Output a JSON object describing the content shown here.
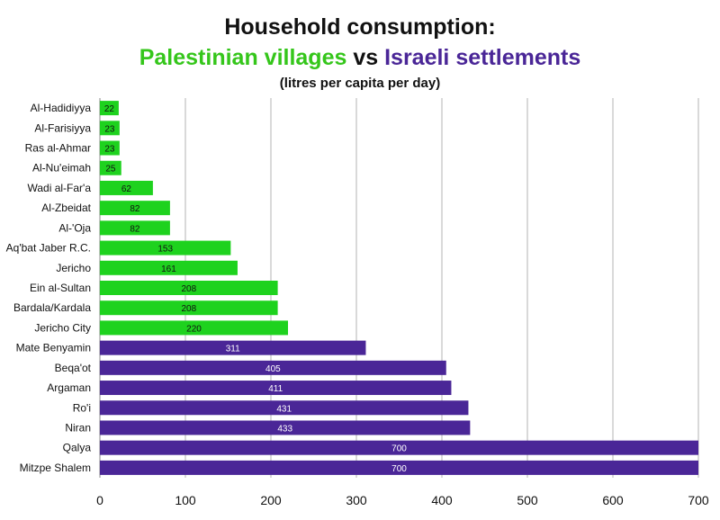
{
  "title": {
    "line1": "Household consumption:",
    "palestinian": "Palestinian villages",
    "vs": " vs ",
    "israeli": "Israeli settlements",
    "subtitle": "(litres per capita per day)"
  },
  "colors": {
    "palestinian": "#1ed21e",
    "israeli": "#4a2697",
    "palestinian_title": "#35c61b",
    "grid": "#b3b3b3"
  },
  "chart_data": {
    "type": "bar",
    "orientation": "horizontal",
    "categories": [
      "Al-Hadidiyya",
      "Al-Farisiyya",
      "Ras al-Ahmar",
      "Al-Nu'eimah",
      "Wadi al-Far'a",
      "Al-Zbeidat",
      "Al-'Oja",
      "Aq'bat Jaber R.C.",
      "Jericho",
      "Ein al-Sultan",
      "Bardala/Kardala",
      "Jericho City",
      "Mate Benyamin",
      "Beqa'ot",
      "Argaman",
      "Ro'i",
      "Niran",
      "Qalya",
      "Mitzpe Shalem"
    ],
    "values": [
      22,
      23,
      23,
      25,
      62,
      82,
      82,
      153,
      161,
      208,
      208,
      220,
      311,
      405,
      411,
      431,
      433,
      700,
      700
    ],
    "groups": [
      "palestinian",
      "palestinian",
      "palestinian",
      "palestinian",
      "palestinian",
      "palestinian",
      "palestinian",
      "palestinian",
      "palestinian",
      "palestinian",
      "palestinian",
      "palestinian",
      "israeli",
      "israeli",
      "israeli",
      "israeli",
      "israeli",
      "israeli",
      "israeli"
    ],
    "xlim": [
      0,
      700
    ],
    "xticks": [
      0,
      100,
      200,
      300,
      400,
      500,
      600,
      700
    ],
    "grid": true,
    "data_labels": true,
    "xlabel": "",
    "ylabel": ""
  }
}
